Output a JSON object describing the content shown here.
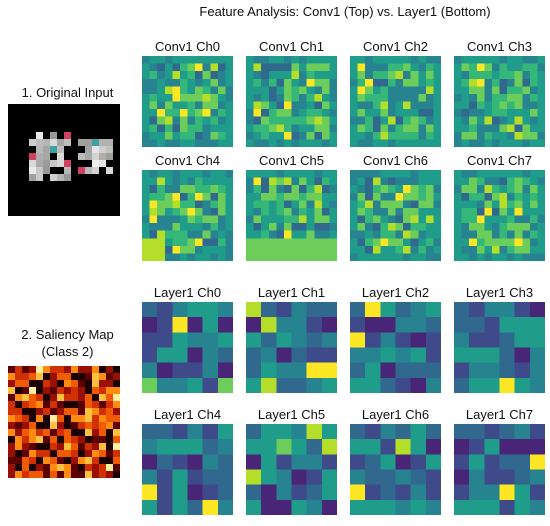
{
  "title": "Feature Analysis: Conv1 (Top) vs. Layer1 (Bottom)",
  "input_panel": {
    "label": "1. Original Input"
  },
  "saliency_panel": {
    "label_line1": "2. Saliency Map",
    "label_line2": "(Class 2)"
  },
  "colors": {
    "viridis": [
      "#440154",
      "#482576",
      "#3e4a89",
      "#31688e",
      "#26838f",
      "#1f9d8a",
      "#35b779",
      "#6ccd5a",
      "#b5de2b",
      "#fde725"
    ],
    "hot": [
      "#1a0000",
      "#5a0000",
      "#9a1000",
      "#d23000",
      "#f05a00",
      "#ff8c10",
      "#ffc040",
      "#fff0a0"
    ]
  },
  "conv1": {
    "titles": [
      "Conv1 Ch0",
      "Conv1 Ch1",
      "Conv1 Ch2",
      "Conv1 Ch3",
      "Conv1 Ch4",
      "Conv1 Ch5",
      "Conv1 Ch6",
      "Conv1 Ch7"
    ]
  },
  "layer1": {
    "titles": [
      "Layer1 Ch0",
      "Layer1 Ch1",
      "Layer1 Ch2",
      "Layer1 Ch3",
      "Layer1 Ch4",
      "Layer1 Ch5",
      "Layer1 Ch6",
      "Layer1 Ch7"
    ]
  }
}
